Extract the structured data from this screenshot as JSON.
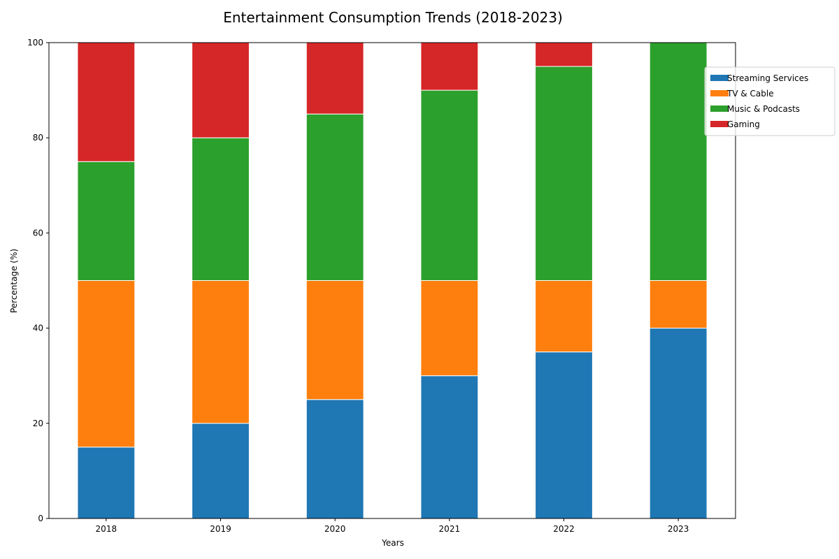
{
  "chart_data": {
    "type": "bar",
    "stacked": true,
    "title": "Entertainment Consumption Trends (2018-2023)",
    "xlabel": "Years",
    "ylabel": "Percentage (%)",
    "ylim": [
      0,
      100
    ],
    "yticks": [
      0,
      20,
      40,
      60,
      80,
      100
    ],
    "categories": [
      "2018",
      "2019",
      "2020",
      "2021",
      "2022",
      "2023"
    ],
    "series": [
      {
        "name": "Streaming Services",
        "color": "#1f77b4",
        "values": [
          15,
          20,
          25,
          30,
          35,
          40
        ]
      },
      {
        "name": "TV & Cable",
        "color": "#ff7f0e",
        "values": [
          35,
          30,
          25,
          20,
          15,
          10
        ]
      },
      {
        "name": "Music & Podcasts",
        "color": "#2ca02c",
        "values": [
          25,
          30,
          35,
          40,
          45,
          50
        ]
      },
      {
        "name": "Gaming",
        "color": "#d62728",
        "values": [
          25,
          20,
          15,
          10,
          5,
          0
        ]
      }
    ],
    "grid": false,
    "legend_position": "top-right"
  }
}
